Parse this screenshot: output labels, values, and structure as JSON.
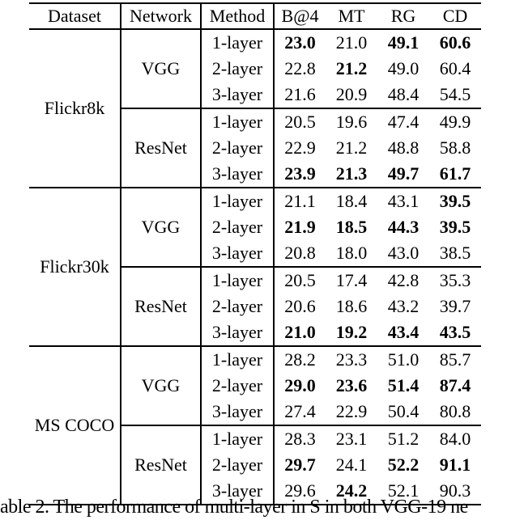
{
  "page": {
    "background": "#ffffff",
    "text_color": "#000000",
    "rule_color": "#000000"
  },
  "table": {
    "columns": [
      "Dataset",
      "Network",
      "Method",
      "B@4",
      "MT",
      "RG",
      "CD"
    ],
    "groups": [
      {
        "dataset": "Flickr8k",
        "networks": [
          {
            "name": "VGG",
            "rows": [
              {
                "method": "1-layer",
                "values": [
                  "23.0",
                  "21.0",
                  "49.1",
                  "60.6"
                ],
                "bold": [
                  true,
                  false,
                  true,
                  true
                ]
              },
              {
                "method": "2-layer",
                "values": [
                  "22.8",
                  "21.2",
                  "49.0",
                  "60.4"
                ],
                "bold": [
                  false,
                  true,
                  false,
                  false
                ]
              },
              {
                "method": "3-layer",
                "values": [
                  "21.6",
                  "20.9",
                  "48.4",
                  "54.5"
                ],
                "bold": [
                  false,
                  false,
                  false,
                  false
                ]
              }
            ]
          },
          {
            "name": "ResNet",
            "rows": [
              {
                "method": "1-layer",
                "values": [
                  "20.5",
                  "19.6",
                  "47.4",
                  "49.9"
                ],
                "bold": [
                  false,
                  false,
                  false,
                  false
                ]
              },
              {
                "method": "2-layer",
                "values": [
                  "22.9",
                  "21.2",
                  "48.8",
                  "58.8"
                ],
                "bold": [
                  false,
                  false,
                  false,
                  false
                ]
              },
              {
                "method": "3-layer",
                "values": [
                  "23.9",
                  "21.3",
                  "49.7",
                  "61.7"
                ],
                "bold": [
                  true,
                  true,
                  true,
                  true
                ]
              }
            ]
          }
        ]
      },
      {
        "dataset": "Flickr30k",
        "networks": [
          {
            "name": "VGG",
            "rows": [
              {
                "method": "1-layer",
                "values": [
                  "21.1",
                  "18.4",
                  "43.1",
                  "39.5"
                ],
                "bold": [
                  false,
                  false,
                  false,
                  true
                ]
              },
              {
                "method": "2-layer",
                "values": [
                  "21.9",
                  "18.5",
                  "44.3",
                  "39.5"
                ],
                "bold": [
                  true,
                  true,
                  true,
                  true
                ]
              },
              {
                "method": "3-layer",
                "values": [
                  "20.8",
                  "18.0",
                  "43.0",
                  "38.5"
                ],
                "bold": [
                  false,
                  false,
                  false,
                  false
                ]
              }
            ]
          },
          {
            "name": "ResNet",
            "rows": [
              {
                "method": "1-layer",
                "values": [
                  "20.5",
                  "17.4",
                  "42.8",
                  "35.3"
                ],
                "bold": [
                  false,
                  false,
                  false,
                  false
                ]
              },
              {
                "method": "2-layer",
                "values": [
                  "20.6",
                  "18.6",
                  "43.2",
                  "39.7"
                ],
                "bold": [
                  false,
                  false,
                  false,
                  false
                ]
              },
              {
                "method": "3-layer",
                "values": [
                  "21.0",
                  "19.2",
                  "43.4",
                  "43.5"
                ],
                "bold": [
                  true,
                  true,
                  true,
                  true
                ]
              }
            ]
          }
        ]
      },
      {
        "dataset": "MS COCO",
        "networks": [
          {
            "name": "VGG",
            "rows": [
              {
                "method": "1-layer",
                "values": [
                  "28.2",
                  "23.3",
                  "51.0",
                  "85.7"
                ],
                "bold": [
                  false,
                  false,
                  false,
                  false
                ]
              },
              {
                "method": "2-layer",
                "values": [
                  "29.0",
                  "23.6",
                  "51.4",
                  "87.4"
                ],
                "bold": [
                  true,
                  true,
                  true,
                  true
                ]
              },
              {
                "method": "3-layer",
                "values": [
                  "27.4",
                  "22.9",
                  "50.4",
                  "80.8"
                ],
                "bold": [
                  false,
                  false,
                  false,
                  false
                ]
              }
            ]
          },
          {
            "name": "ResNet",
            "rows": [
              {
                "method": "1-layer",
                "values": [
                  "28.3",
                  "23.1",
                  "51.2",
                  "84.0"
                ],
                "bold": [
                  false,
                  false,
                  false,
                  false
                ]
              },
              {
                "method": "2-layer",
                "values": [
                  "29.7",
                  "24.1",
                  "52.2",
                  "91.1"
                ],
                "bold": [
                  true,
                  false,
                  true,
                  true
                ]
              },
              {
                "method": "3-layer",
                "values": [
                  "29.6",
                  "24.2",
                  "52.1",
                  "90.3"
                ],
                "bold": [
                  false,
                  true,
                  false,
                  false
                ]
              }
            ]
          }
        ]
      }
    ]
  },
  "caption": {
    "text": "able 2. The performance of multi-layer in S in both VGG-19 ne"
  }
}
